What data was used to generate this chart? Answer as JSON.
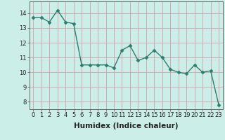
{
  "x": [
    0,
    1,
    2,
    3,
    4,
    5,
    6,
    7,
    8,
    9,
    10,
    11,
    12,
    13,
    14,
    15,
    16,
    17,
    18,
    19,
    20,
    21,
    22,
    23
  ],
  "y": [
    13.7,
    13.7,
    13.4,
    14.2,
    13.4,
    13.3,
    10.5,
    10.5,
    10.5,
    10.5,
    10.3,
    11.5,
    11.8,
    10.8,
    11.0,
    11.5,
    11.0,
    10.2,
    10.0,
    9.9,
    10.5,
    10.0,
    10.1,
    7.8
  ],
  "line_color": "#2e7d6e",
  "marker": "D",
  "markersize": 2.5,
  "linewidth": 1.0,
  "bg_color": "#cceee8",
  "grid_color": "#d0a0a8",
  "xlabel": "Humidex (Indice chaleur)",
  "ylim": [
    7.5,
    14.8
  ],
  "xlim": [
    -0.5,
    23.5
  ],
  "yticks": [
    8,
    9,
    10,
    11,
    12,
    13,
    14
  ],
  "xticks": [
    0,
    1,
    2,
    3,
    4,
    5,
    6,
    7,
    8,
    9,
    10,
    11,
    12,
    13,
    14,
    15,
    16,
    17,
    18,
    19,
    20,
    21,
    22,
    23
  ],
  "tick_fontsize": 6,
  "xlabel_fontsize": 7.5
}
